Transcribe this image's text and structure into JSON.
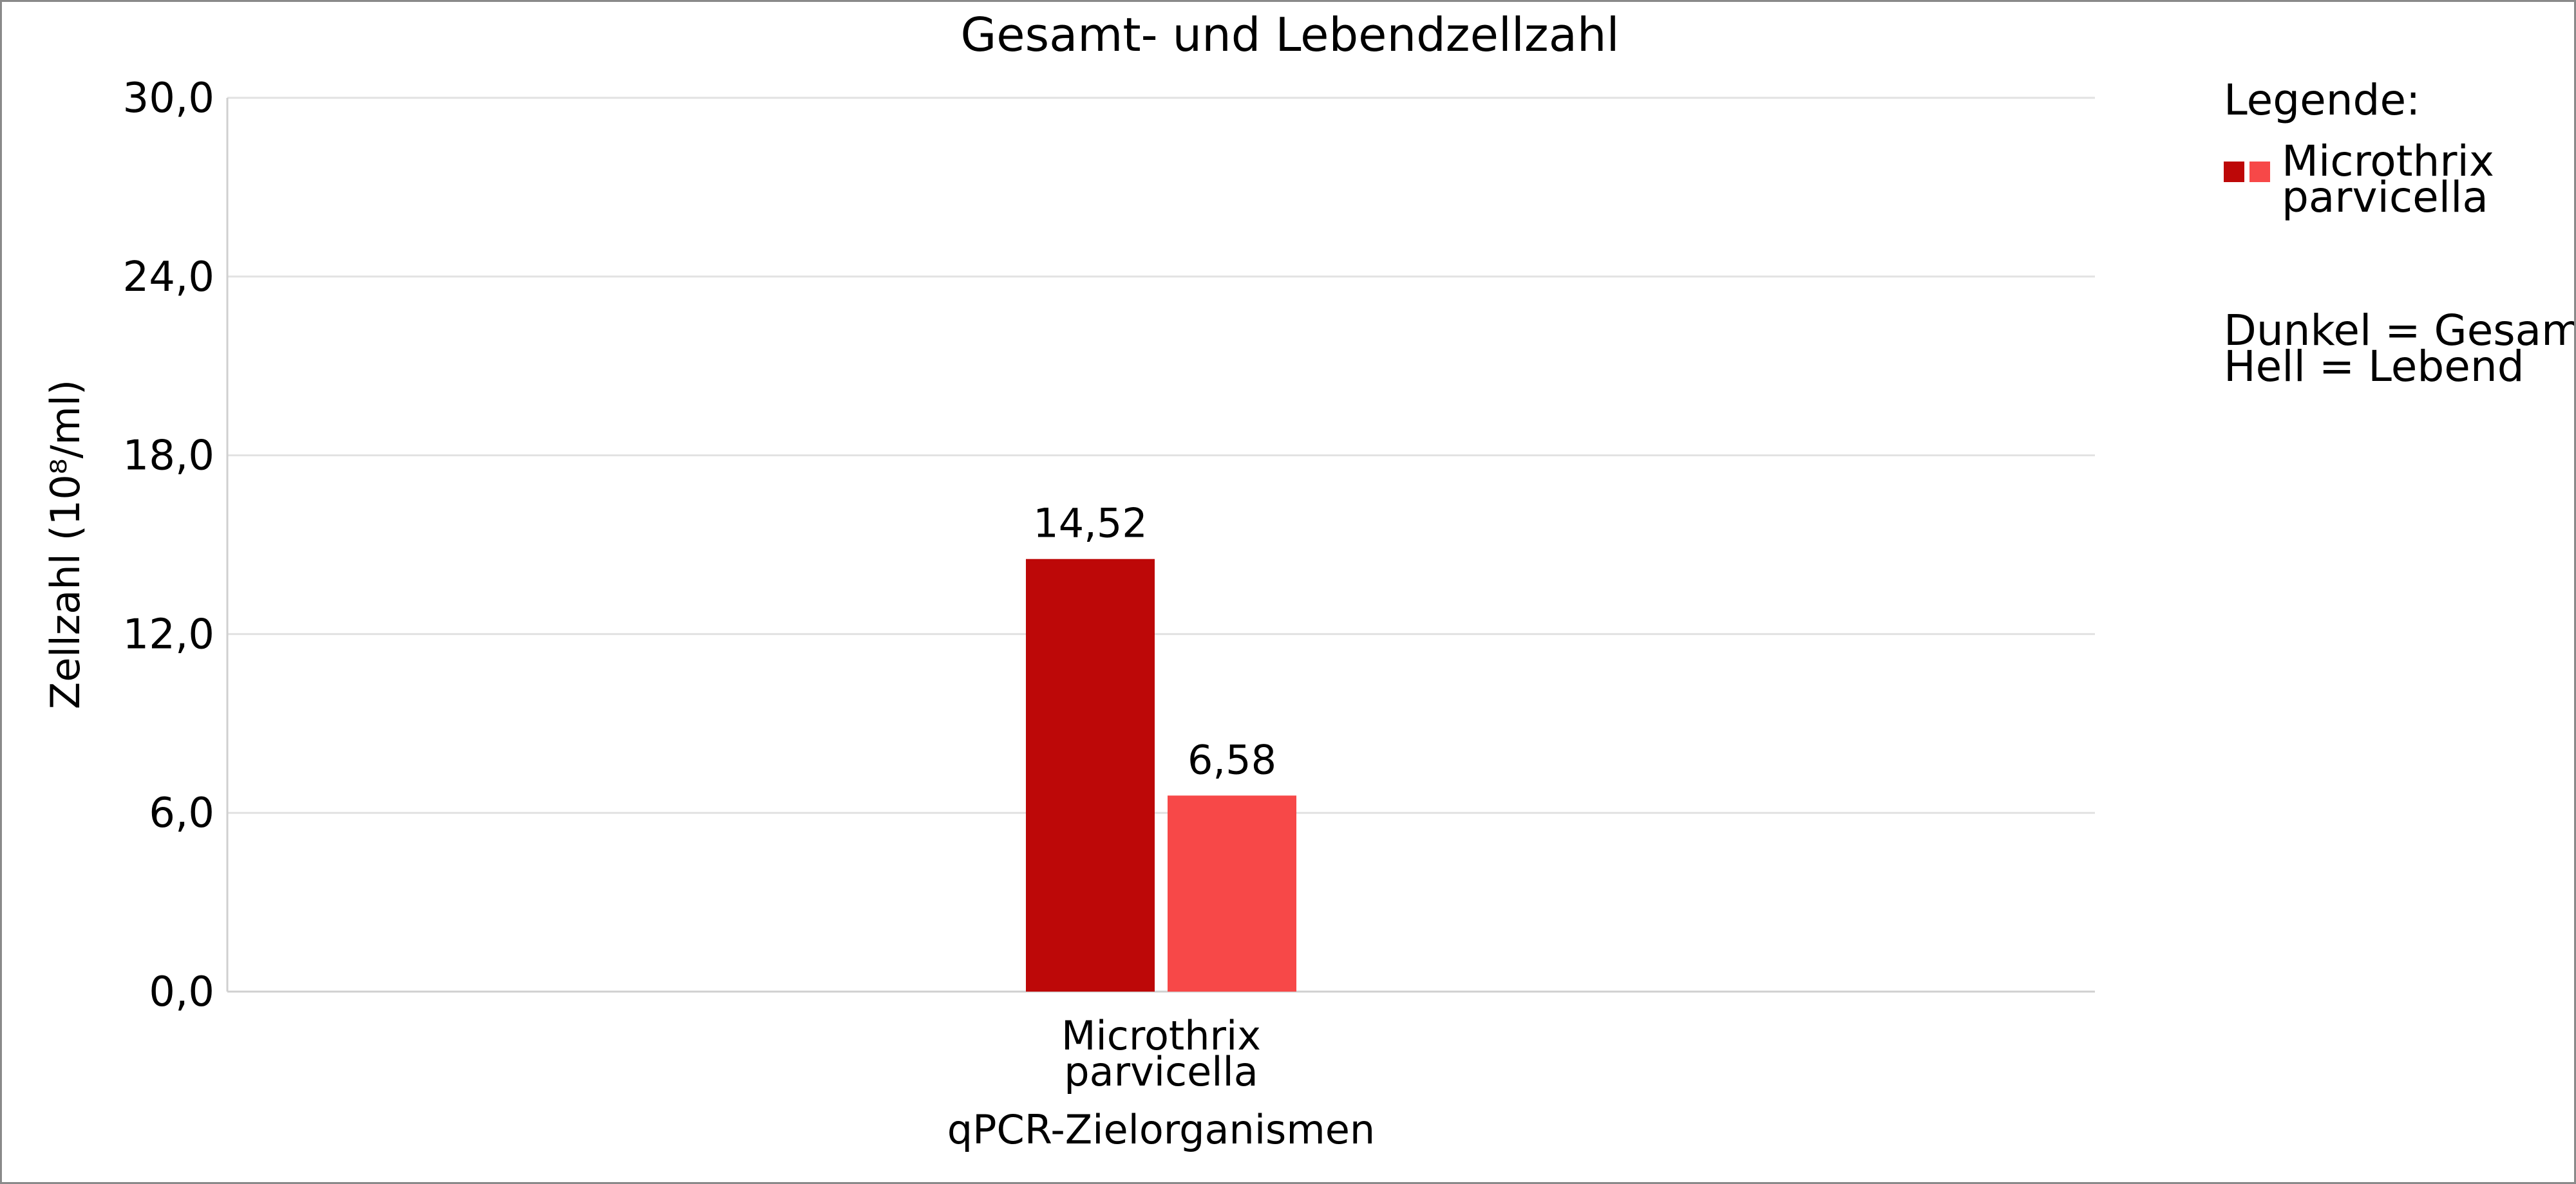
{
  "chart_data": {
    "type": "bar",
    "title": "Gesamt- und Lebendzellzahl",
    "xlabel": "qPCR-Zielorganismen",
    "ylabel": "Zellzahl (10⁸/ml)",
    "ylim": [
      0,
      30
    ],
    "yticks": [
      "0,0",
      "6,0",
      "12,0",
      "18,0",
      "24,0",
      "30,0"
    ],
    "ytick_values": [
      0,
      6,
      12,
      18,
      24,
      30
    ],
    "grid": true,
    "categories": [
      [
        "Microthrix",
        "parvicella"
      ]
    ],
    "series": [
      {
        "values": [
          14.52
        ],
        "labels": [
          "14,52"
        ],
        "color": "#bd0808"
      },
      {
        "values": [
          6.58
        ],
        "labels": [
          "6,58"
        ],
        "color": "#f74848"
      }
    ],
    "legend": {
      "position": "right",
      "heading": "Legende:",
      "entries": [
        {
          "lines": [
            "Microthrix",
            "parvicella"
          ],
          "colors": [
            "#bd0808",
            "#f74848"
          ]
        }
      ],
      "notes": [
        "Dunkel = Gesamt",
        "Hell = Lebend"
      ]
    }
  }
}
